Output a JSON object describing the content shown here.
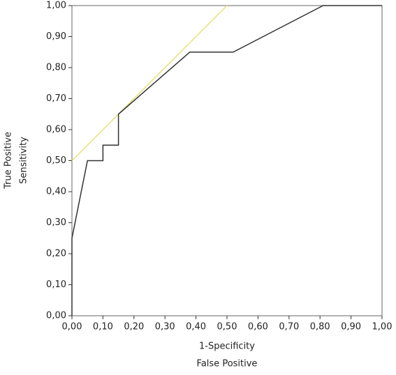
{
  "chart_data": {
    "type": "line",
    "xlabel": [
      "1-Specificity",
      "False Positive"
    ],
    "ylabel": [
      "True Positive",
      "Sensitivity"
    ],
    "xlim": [
      0,
      1
    ],
    "ylim": [
      0,
      1
    ],
    "xticks": [
      {
        "value": 0,
        "label": "0,00"
      },
      {
        "value": 0.1,
        "label": "0,10"
      },
      {
        "value": 0.2,
        "label": "0,20"
      },
      {
        "value": 0.3,
        "label": "0,30"
      },
      {
        "value": 0.4,
        "label": "0,40"
      },
      {
        "value": 0.5,
        "label": "0,50"
      },
      {
        "value": 0.6,
        "label": "0,60"
      },
      {
        "value": 0.7,
        "label": "0,70"
      },
      {
        "value": 0.8,
        "label": "0,80"
      },
      {
        "value": 0.9,
        "label": "0,90"
      },
      {
        "value": 1,
        "label": "1,00"
      }
    ],
    "yticks": [
      {
        "value": 0,
        "label": "0,00"
      },
      {
        "value": 0.1,
        "label": "0,10"
      },
      {
        "value": 0.2,
        "label": "0,20"
      },
      {
        "value": 0.3,
        "label": "0,30"
      },
      {
        "value": 0.4,
        "label": "0,40"
      },
      {
        "value": 0.5,
        "label": "0,50"
      },
      {
        "value": 0.6,
        "label": "0,60"
      },
      {
        "value": 0.7,
        "label": "0,70"
      },
      {
        "value": 0.8,
        "label": "0,80"
      },
      {
        "value": 0.9,
        "label": "0,90"
      },
      {
        "value": 1,
        "label": "1,00"
      }
    ],
    "series": [
      {
        "color": "#e4e27a",
        "x": [
          0,
          0.5
        ],
        "values": [
          0.5,
          1
        ]
      },
      {
        "color": "#333333",
        "x": [
          0,
          0,
          0.05,
          0.1,
          0.1,
          0.15,
          0.15,
          0.38,
          0.52,
          0.81,
          1
        ],
        "values": [
          0,
          0.25,
          0.5,
          0.5,
          0.55,
          0.55,
          0.65,
          0.85,
          0.85,
          1,
          1
        ]
      }
    ]
  }
}
